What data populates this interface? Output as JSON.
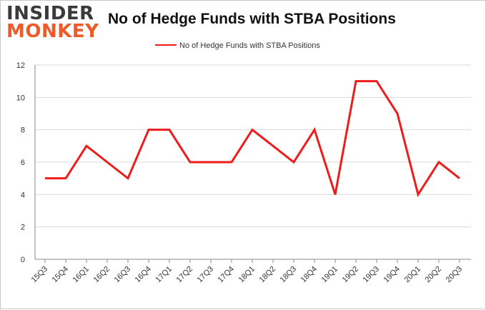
{
  "logo": {
    "line1": "INSIDER",
    "line2": "MONKEY"
  },
  "chart_data": {
    "type": "line",
    "title": "No of Hedge Funds with STBA Positions",
    "categories": [
      "15Q3",
      "15Q4",
      "16Q1",
      "16Q2",
      "16Q3",
      "16Q4",
      "17Q1",
      "17Q2",
      "17Q3",
      "17Q4",
      "18Q1",
      "18Q2",
      "18Q3",
      "18Q4",
      "19Q1",
      "19Q2",
      "19Q3",
      "19Q4",
      "20Q1",
      "20Q2",
      "20Q3"
    ],
    "series": [
      {
        "name": "No of Hedge Funds with STBA Positions",
        "color": "#ee1c1c",
        "values": [
          5,
          5,
          7,
          6,
          5,
          8,
          8,
          6,
          6,
          6,
          8,
          7,
          6,
          8,
          4,
          11,
          11,
          9,
          4,
          6,
          5
        ]
      }
    ],
    "ylim": [
      0,
      12
    ],
    "yticks": [
      0,
      2,
      4,
      6,
      8,
      10,
      12
    ],
    "xlabel": "",
    "ylabel": "",
    "grid": true,
    "legend": "top"
  },
  "colors": {
    "line": "#ee1c1c",
    "grid": "#d9d9d9",
    "axis": "#888888"
  }
}
